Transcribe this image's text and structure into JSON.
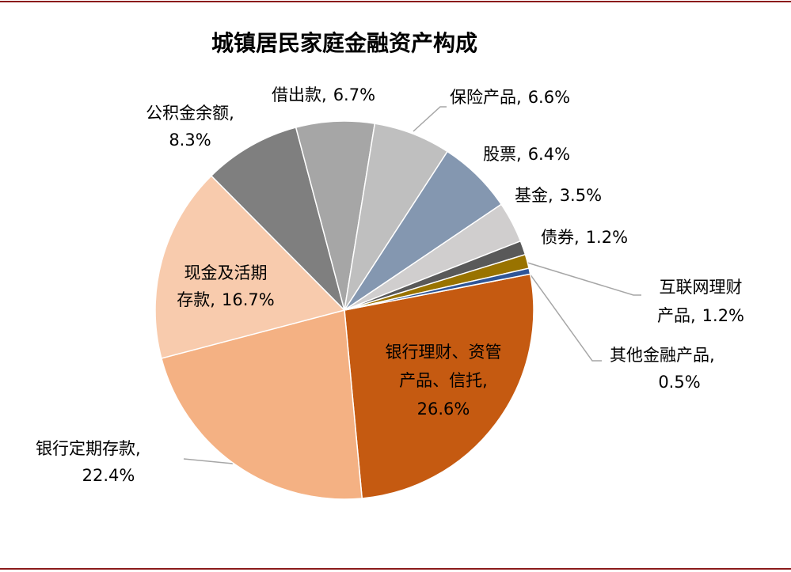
{
  "chart_data": {
    "type": "pie",
    "title": "城镇居民家庭金融资产构成",
    "categories": [
      "银行理财、资管产品、信托,",
      "银行定期存款,",
      "现金及活期存款,",
      "公积金余额,",
      "借出款,",
      "保险产品,",
      "股票,",
      "基金,",
      "债券,",
      "互联网理财产品,",
      "其他金融产品,"
    ],
    "values": [
      26.6,
      22.4,
      16.7,
      8.3,
      6.7,
      6.6,
      6.4,
      3.5,
      1.2,
      1.2,
      0.5
    ],
    "value_labels": [
      "26.6%",
      "22.4%",
      "16.7%",
      "8.3%",
      "6.7%",
      "6.6%",
      "6.4%",
      "3.5%",
      "1.2%",
      "1.2%",
      "0.5%"
    ],
    "colors": [
      "#c55a11",
      "#f4b183",
      "#f8cbad",
      "#7f7f7f",
      "#a6a6a6",
      "#bfbfbf",
      "#8497b0",
      "#d0cece",
      "#595959",
      "#997300",
      "#2f5597"
    ]
  }
}
